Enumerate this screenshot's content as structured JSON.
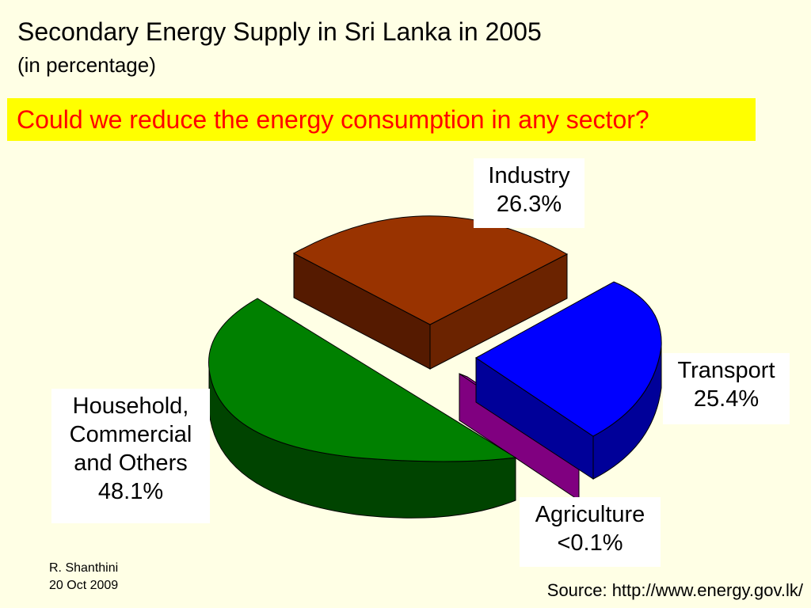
{
  "title": "Secondary Energy Supply in Sri Lanka in 2005",
  "subtitle": "(in percentage)",
  "banner": "Could we reduce the energy consumption in any sector?",
  "colors": {
    "background": "#FFFFE5",
    "banner_bg": "#FFFF00",
    "banner_text": "#FF0000"
  },
  "chart_data": {
    "type": "pie",
    "style": "3d-exploded",
    "title": "Secondary Energy Supply in Sri Lanka in 2005",
    "subtitle": "(in percentage)",
    "slices": [
      {
        "name": "Industry",
        "value": 26.3,
        "value_label": "26.3%",
        "color": "#993300",
        "dark": "#551A00"
      },
      {
        "name": "Transport",
        "value": 25.4,
        "value_label": "25.4%",
        "color": "#0000FF",
        "dark": "#000099"
      },
      {
        "name": "Agriculture",
        "value": 0.1,
        "value_label": "<0.1%",
        "color": "#800080",
        "dark": "#4C004C"
      },
      {
        "name": "Household, Commercial and Others",
        "value": 48.1,
        "value_label": "48.1%",
        "color": "#008000",
        "dark": "#004400"
      }
    ]
  },
  "labels": {
    "industry": {
      "line1": "Industry",
      "line2": "26.3%"
    },
    "transport": {
      "line1": "Transport",
      "line2": "25.4%"
    },
    "agriculture": {
      "line1": "Agriculture",
      "line2": "<0.1%"
    },
    "household": {
      "line1": "Household,",
      "line2": "Commercial",
      "line3": "and Others",
      "line4": "48.1%"
    }
  },
  "author": {
    "name": "R. Shanthini",
    "date": "20 Oct 2009"
  },
  "source": "Source: http://www.energy.gov.lk/"
}
